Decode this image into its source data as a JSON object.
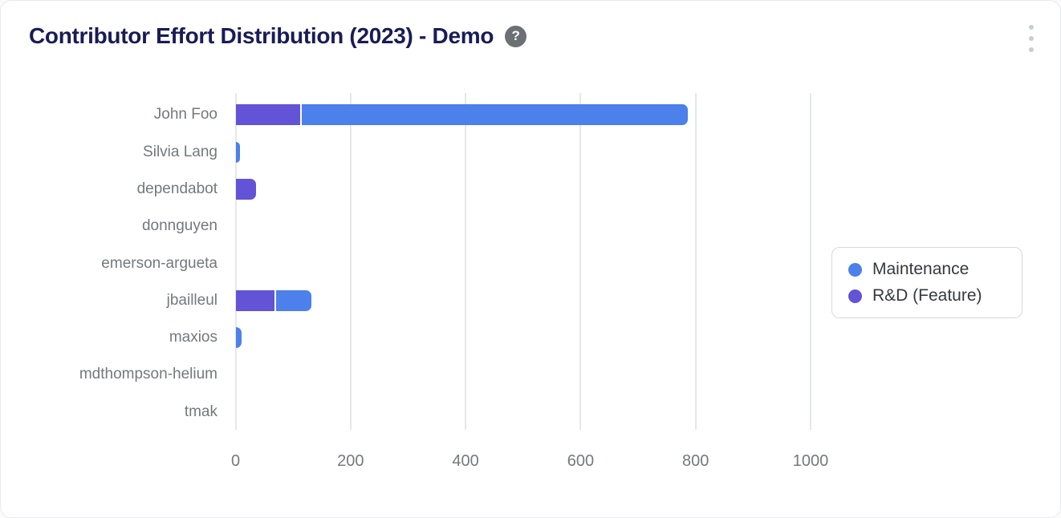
{
  "header": {
    "title": "Contributor Effort Distribution (2023) - Demo",
    "help_icon_glyph": "?",
    "menu_icon": "kebab-vertical-icon"
  },
  "colors": {
    "maintenance_blue": "#4c80ea",
    "rnd_purple": "#6353d6",
    "title_navy": "#191c55",
    "axis_text_gray": "#74787d",
    "gridline_gray": "#e5e7ea",
    "card_border": "#e9eaee",
    "legend_border": "#d6d9de",
    "help_icon_bg": "#6b7075",
    "kebab_gray": "#c9ccd1"
  },
  "chart_data": {
    "type": "bar",
    "orientation": "horizontal",
    "stacked": true,
    "title": "Contributor Effort Distribution (2023) - Demo",
    "xlabel": "",
    "ylabel": "",
    "categories": [
      "John Foo",
      "Silvia Lang",
      "dependabot",
      "donnguyen",
      "emerson-argueta",
      "jbailleul",
      "maxios",
      "mdthompson-helium",
      "tmak"
    ],
    "series": [
      {
        "name": "Maintenance",
        "color": "#4c80ea",
        "values": [
          670,
          8,
          0,
          0,
          0,
          62,
          11,
          0,
          0
        ]
      },
      {
        "name": "R&D (Feature)",
        "color": "#6353d6",
        "values": [
          113,
          0,
          35,
          0,
          0,
          67,
          0,
          0,
          0
        ]
      }
    ],
    "stack_order": [
      "R&D (Feature)",
      "Maintenance"
    ],
    "x_ticks": [
      0,
      200,
      400,
      600,
      800,
      1000
    ],
    "xlim": [
      0,
      1000
    ],
    "grid": true,
    "legend_position": "right"
  }
}
